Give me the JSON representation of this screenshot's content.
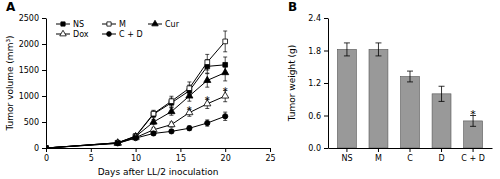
{
  "chart_data": [
    {
      "type": "line",
      "title": "A",
      "xlabel": "Days after LL/2 inoculation",
      "ylabel": "Tumor volume (mm³)",
      "x": [
        0,
        8,
        10,
        12,
        14,
        16,
        18,
        20
      ],
      "series": [
        {
          "name": "NS",
          "color": "#000000",
          "marker": "square",
          "values": [
            0,
            100,
            220,
            650,
            870,
            1100,
            1570,
            1600
          ],
          "errors": [
            0,
            10,
            30,
            60,
            90,
            110,
            130,
            150
          ]
        },
        {
          "name": "M",
          "color": "#000000",
          "marker": "square-open",
          "values": [
            0,
            100,
            230,
            660,
            900,
            1150,
            1650,
            2050
          ],
          "errors": [
            0,
            10,
            30,
            65,
            95,
            120,
            150,
            200
          ]
        },
        {
          "name": "Cur",
          "color": "#000000",
          "marker": "triangle",
          "values": [
            0,
            100,
            220,
            500,
            700,
            1000,
            1300,
            1450
          ],
          "errors": [
            0,
            10,
            25,
            50,
            70,
            100,
            130,
            160
          ]
        },
        {
          "name": "Dox",
          "color": "#000000",
          "marker": "triangle-open",
          "values": [
            0,
            90,
            200,
            350,
            450,
            680,
            850,
            1000
          ],
          "errors": [
            0,
            10,
            20,
            40,
            50,
            70,
            90,
            110
          ]
        },
        {
          "name": "C + D",
          "color": "#000000",
          "marker": "circle",
          "values": [
            0,
            90,
            190,
            280,
            320,
            380,
            480,
            610
          ],
          "errors": [
            0,
            10,
            20,
            30,
            35,
            45,
            60,
            80
          ]
        }
      ],
      "annotations": [
        {
          "text": "*",
          "x": 16,
          "y": 750
        },
        {
          "text": "*",
          "x": 18,
          "y": 950
        },
        {
          "text": "*",
          "x": 20,
          "y": 1110
        }
      ],
      "xlim": [
        0,
        25
      ],
      "xticks": [
        0,
        5,
        10,
        15,
        20,
        25
      ],
      "ylim": [
        0,
        2500
      ],
      "yticks": [
        0,
        500,
        1000,
        1500,
        2000,
        2500
      ],
      "legend": "upper left"
    },
    {
      "type": "bar",
      "title": "B",
      "ylabel": "Tumor weight (g)",
      "categories": [
        "NS",
        "M",
        "C",
        "D",
        "C + D"
      ],
      "values": [
        1.82,
        1.82,
        1.32,
        1.0,
        0.5
      ],
      "errors": [
        0.12,
        0.12,
        0.1,
        0.14,
        0.1
      ],
      "color": "#999999",
      "annotations": [
        {
          "text": "*",
          "x": "C + D",
          "y": 0.64
        }
      ],
      "ylim": [
        0,
        2.4
      ],
      "yticks": [
        {
          "value": 0.0,
          "label": "0.0"
        },
        0.6,
        1.2,
        1.8,
        2.4
      ]
    }
  ]
}
